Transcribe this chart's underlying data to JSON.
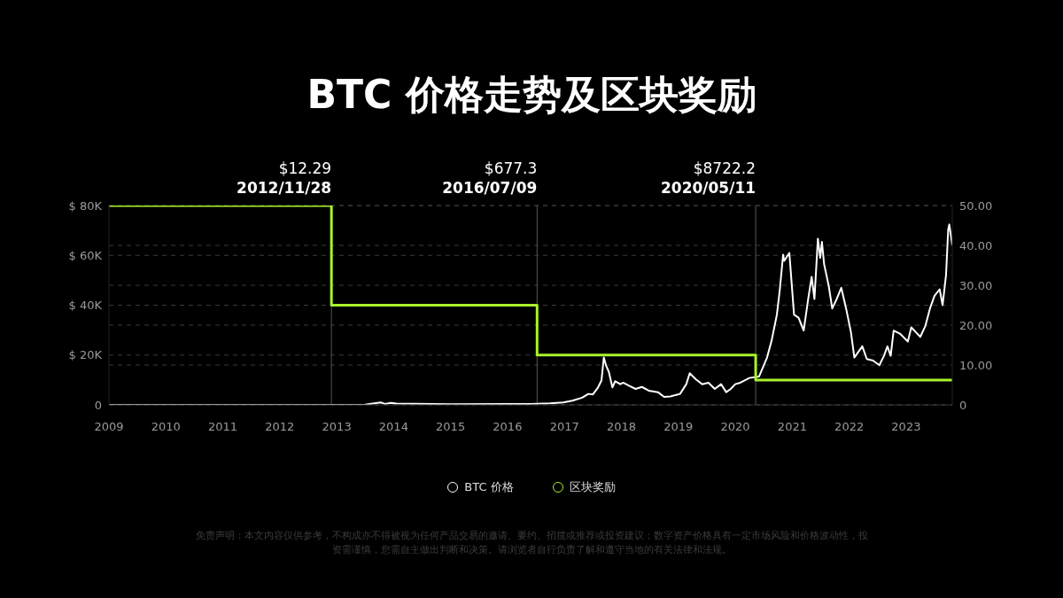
{
  "chart_data": {
    "type": "line",
    "title": "BTC 价格走势及区块奖励",
    "series": [
      {
        "name": "BTC 价格",
        "color": "#ffffff",
        "x": [
          "2009-01-01",
          "2010-01-01",
          "2011-01-01",
          "2012-01-01",
          "2013-01-01",
          "2013-07-02",
          "2013-10-09",
          "2013-11-07",
          "2013-12-14",
          "2014-01-19",
          "2015-01-01",
          "2016-01-01",
          "2016-06-03",
          "2016-10-01",
          "2016-12-24",
          "2017-02-21",
          "2017-04-24",
          "2017-06-03",
          "2017-07-02",
          "2017-08-04",
          "2017-08-26",
          "2017-09-10",
          "2017-09-24",
          "2017-10-12",
          "2017-11-04",
          "2017-11-22",
          "2017-12-25",
          "2018-01-12",
          "2018-02-21",
          "2018-04-02",
          "2018-05-12",
          "2018-06-25",
          "2018-08-23",
          "2018-10-02",
          "2018-11-11",
          "2019-01-12",
          "2019-02-21",
          "2019-03-15",
          "2019-04-24",
          "2019-06-03",
          "2019-07-13",
          "2019-08-23",
          "2019-10-02",
          "2019-11-04",
          "2019-12-03",
          "2020-01-01",
          "2020-02-03",
          "2020-04-01",
          "2020-06-02",
          "2020-07-23",
          "2020-08-22",
          "2020-09-24",
          "2020-10-12",
          "2020-11-03",
          "2020-11-10",
          "2020-12-13",
          "2021-01-12",
          "2021-02-10",
          "2021-03-15",
          "2021-04-13",
          "2021-05-05",
          "2021-05-23",
          "2021-06-14",
          "2021-06-29",
          "2021-07-10",
          "2021-07-24",
          "2021-08-23",
          "2021-09-14",
          "2021-10-13",
          "2021-11-11",
          "2021-12-14",
          "2022-01-12",
          "2022-02-03",
          "2022-03-26",
          "2022-04-24",
          "2022-06-03",
          "2022-07-13",
          "2022-08-12",
          "2022-09-03",
          "2022-09-24",
          "2022-10-13",
          "2022-11-22",
          "2023-01-12",
          "2023-02-03",
          "2023-03-04",
          "2023-04-02",
          "2023-05-05",
          "2023-06-03",
          "2023-07-02",
          "2023-08-04",
          "2023-08-23",
          "2023-09-14",
          "2023-09-28",
          "2023-10-05",
          "2023-10-24"
        ],
        "values": [
          0,
          0,
          0,
          0,
          0,
          100,
          1000,
          400,
          800,
          500,
          300,
          400,
          400,
          600,
          1000,
          1700,
          2900,
          4400,
          4200,
          7000,
          9800,
          19000,
          15900,
          13300,
          7000,
          9500,
          8300,
          8900,
          7600,
          6400,
          7200,
          5700,
          5100,
          3200,
          3400,
          4400,
          8300,
          12700,
          10200,
          8300,
          8900,
          6400,
          8300,
          5100,
          6400,
          8300,
          8900,
          10800,
          11400,
          19000,
          26000,
          36200,
          45700,
          60300,
          57800,
          61000,
          36200,
          35000,
          29800,
          42500,
          51400,
          42500,
          66700,
          59000,
          65400,
          56500,
          47600,
          38700,
          42500,
          47000,
          38100,
          29200,
          19000,
          23500,
          18400,
          17800,
          15900,
          19700,
          23500,
          19700,
          29800,
          28600,
          25400,
          31100,
          29200,
          27300,
          31800,
          38700,
          43800,
          46400,
          40000,
          52100,
          70500,
          72400,
          64100
        ]
      },
      {
        "name": "区块奖励",
        "type": "step",
        "axis": "y2",
        "color": "#aaf22c",
        "x": [
          "2009-01-01",
          "2012-11-28",
          "2016-07-09",
          "2020-05-11",
          "2023-10-24"
        ],
        "values": [
          50,
          25,
          12.5,
          6.25,
          6.25
        ]
      }
    ],
    "xlim": [
      "2009-01-01",
      "2023-10-24"
    ],
    "xticks": [
      "2009",
      "2010",
      "2011",
      "2012",
      "2013",
      "2014",
      "2015",
      "2016",
      "2017",
      "2018",
      "2019",
      "2020",
      "2021",
      "2022",
      "2023"
    ],
    "ylim": [
      0,
      80000
    ],
    "yticks": [
      {
        "value": 0,
        "label": "0"
      },
      {
        "value": 20000,
        "label": "$ 20K"
      },
      {
        "value": 40000,
        "label": "$ 40K"
      },
      {
        "value": 60000,
        "label": "$ 60K"
      },
      {
        "value": 80000,
        "label": "$ 80K"
      }
    ],
    "y2lim": [
      0,
      50
    ],
    "y2ticks": [
      {
        "value": 0,
        "label": "0"
      },
      {
        "value": 10,
        "label": "10.00"
      },
      {
        "value": 20,
        "label": "20.00"
      },
      {
        "value": 30,
        "label": "30.00"
      },
      {
        "value": 40,
        "label": "40.00"
      },
      {
        "value": 50,
        "label": "50.00"
      }
    ],
    "ref_lines": [
      {
        "axis": "x",
        "value": "2012-11-28",
        "label": "2012/11/28",
        "color": "#555555"
      },
      {
        "axis": "x",
        "value": "2016-07-09",
        "label": "2016/07/09",
        "color": "#555555"
      },
      {
        "axis": "x",
        "value": "2020-05-11",
        "label": "2020/05/11",
        "color": "#555555"
      }
    ],
    "annotations": [
      "$12.29",
      "$677.3",
      "$8722.2",
      "免责声明：本文内容仅供参考，不构成亦不得被视为任何产品交易的邀请、要约、招揽或推荐或投资建议；数字资产价格具有一定市场风险和价格波动性，投资需谨慎，您需自主做出判断和决策。请浏览者自行负责了解和遵守当地的有关法律和法规。"
    ],
    "grid": "y",
    "legend": "bottom",
    "marker": "none",
    "line_style": "solid"
  }
}
